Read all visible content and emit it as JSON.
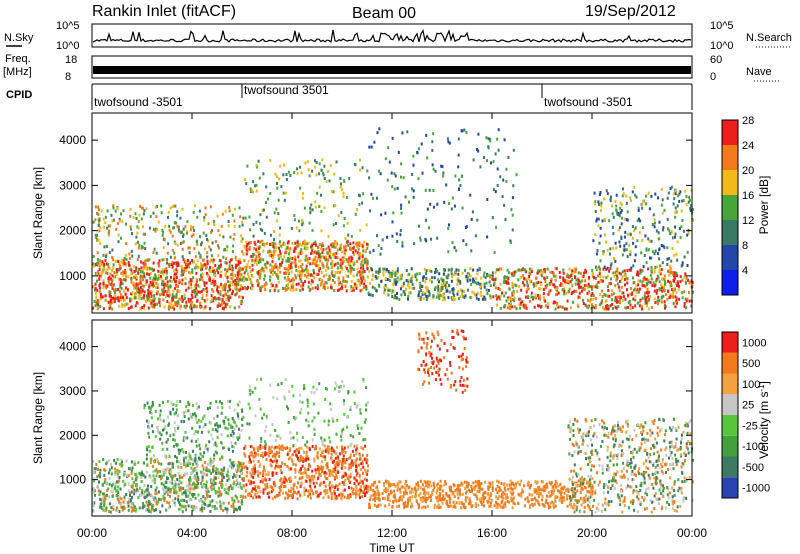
{
  "header": {
    "station": "Rankin Inlet (fitACF)",
    "beam": "Beam 00",
    "date": "19/Sep/2012"
  },
  "left_labels": {
    "nsky": "N.Sky",
    "freq_top": "Freq.",
    "freq_unit": "[MHz]",
    "cpid": "CPID"
  },
  "right_labels": {
    "nsearch": "N.Search",
    "nave": "Nave"
  },
  "noise_axis": {
    "left_ticks": [
      "10^5",
      "10^0"
    ],
    "right_ticks": [
      "10^5",
      "10^0"
    ]
  },
  "freq_axis": {
    "left_ticks": [
      "18",
      "8"
    ],
    "right_ticks": [
      "60",
      "0"
    ]
  },
  "cpid_segments": [
    {
      "label": "twofsound -3501",
      "start_hour": 0
    },
    {
      "label": "twofsound 3501",
      "start_hour": 6
    },
    {
      "label": "twofsound -3501",
      "start_hour": 18
    }
  ],
  "chart_data": [
    {
      "type": "heatmap",
      "name": "power",
      "ylabel": "Slant Range [km]",
      "xlabel": "",
      "xlim_hours": [
        0,
        24
      ],
      "ylim_km": [
        180,
        4600
      ],
      "yticks": [
        "1000",
        "2000",
        "3000",
        "4000"
      ],
      "colorbar": {
        "label": "Power [dB]",
        "ticks": [
          "4",
          "8",
          "12",
          "16",
          "20",
          "24",
          "28"
        ],
        "colors": [
          "#0f1ee6",
          "#2347a8",
          "#3a7a64",
          "#47a53c",
          "#f2b91a",
          "#f07a1c",
          "#ec1f1c"
        ]
      }
    },
    {
      "type": "heatmap",
      "name": "velocity",
      "ylabel": "Slant Range [km]",
      "xlabel": "Time UT",
      "xlim_hours": [
        0,
        24
      ],
      "ylim_km": [
        180,
        4600
      ],
      "yticks": [
        "1000",
        "2000",
        "3000",
        "4000"
      ],
      "xticks": [
        "00:00",
        "04:00",
        "08:00",
        "12:00",
        "16:00",
        "20:00",
        "00:00"
      ],
      "colorbar": {
        "label": "Velocity [m s^-1]",
        "ticks": [
          "1000",
          "500",
          "100",
          "25",
          "-25",
          "-100",
          "-500",
          "-1000"
        ],
        "colors": [
          "#2a43b0",
          "#3d7a64",
          "#43a03c",
          "#58c63a",
          "#c6c6c6",
          "#f2a040",
          "#f07a1c",
          "#ec1f1c"
        ]
      }
    }
  ]
}
